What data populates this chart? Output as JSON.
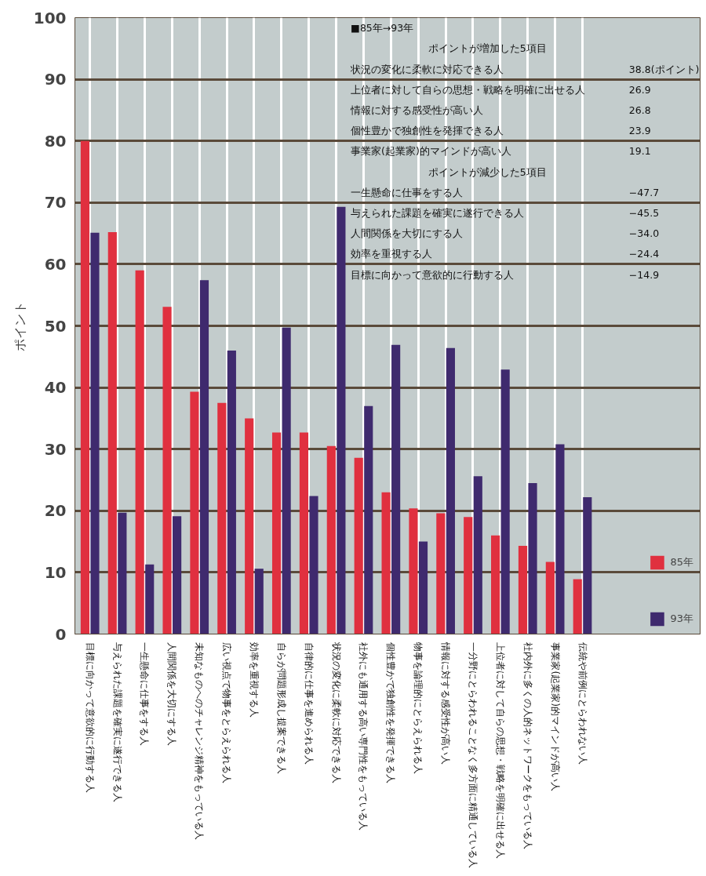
{
  "chart_data": [
    {
      "type": "bar",
      "ylabel": "ポイント",
      "categories": [
        "目標に向かって意欲的に行動する人",
        "与えられた課題を確実に遂行できる人",
        "一生懸命に仕事をする人",
        "人間関係を大切にする人",
        "未知なものへのチャレンジ精神をもっている人",
        "広い視点で物事をとらえられる人",
        "効率を重視する人",
        "自らが問題形成し提案できる人",
        "自律的に仕事を進められる人",
        "状況の変化に柔軟に対応できる人",
        "社外にも通用する高い専門性をもっている人",
        "個性豊かで独創性を発揮できる人",
        "物事を論理的にとらえられる人",
        "情報に対する感受性が高い人",
        "一分野にとらわれることなく多方面に精通している人",
        "上位者に対して自らの思想・戦略を明確に出せる人",
        "社内外に多くの人的ネットワークをもっている人",
        "事業家(起業家)的マインドが高い人",
        "伝統や前例にとらわれない人"
      ],
      "series": [
        {
          "name": "85年",
          "color": "#e0303f",
          "values": [
            80.0,
            65.2,
            59.0,
            53.1,
            39.3,
            37.5,
            35.0,
            32.7,
            32.7,
            30.5,
            28.6,
            23.0,
            20.4,
            19.6,
            19.0,
            16.0,
            14.3,
            11.7,
            8.9
          ]
        },
        {
          "name": "93年",
          "color": "#3f2a6e",
          "values": [
            65.1,
            19.7,
            11.3,
            19.1,
            57.4,
            46.0,
            10.6,
            49.7,
            22.4,
            69.3,
            37.0,
            46.9,
            15.0,
            46.4,
            25.6,
            42.9,
            24.5,
            30.8,
            22.2
          ]
        }
      ],
      "ylim": [
        0,
        100
      ],
      "yticks": [
        0,
        10,
        20,
        30,
        40,
        50,
        60,
        70,
        80,
        90,
        100
      ],
      "grid": true,
      "legend": "bottom right"
    },
    {
      "type": "other",
      "title": "■85年→93年",
      "annotations": [
        "ポイントが増加した5項目",
        "ポイントが減少した5項目"
      ],
      "categories": [
        "状況の変化に柔軟に対応できる人",
        "上位者に対して自らの思想・戦略を明確に出せる人",
        "情報に対する感受性が高い人",
        "個性豊かで独創性を発揮できる人",
        "事業家(起業家)的マインドが高い人",
        "一生懸命に仕事をする人",
        "与えられた課題を確実に遂行できる人",
        "人間関係を大切にする人",
        "効率を重視する人",
        "目標に向かって意欲的に行動する人"
      ],
      "value_labels": [
        "38.8(ポイント)",
        "26.9",
        "26.8",
        "23.9",
        "19.1",
        "−47.7",
        "−45.5",
        "−34.0",
        "−24.4",
        "−14.9"
      ]
    }
  ]
}
